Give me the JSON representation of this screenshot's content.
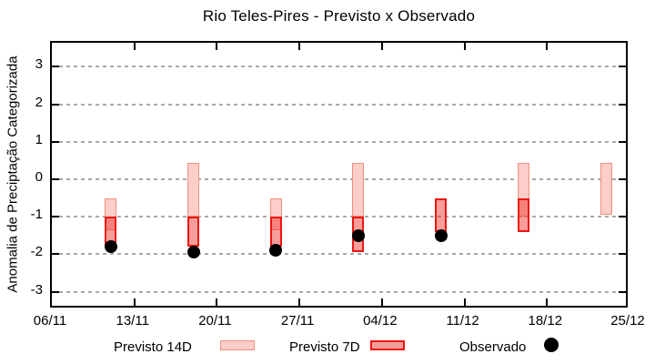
{
  "chart_data": {
    "type": "bar",
    "subtype": "range-bars-with-observed-points",
    "title": "Rio Teles-Pires - Previsto x Observado",
    "ylabel": "Anomalia de Preciptação Categorizada",
    "xlabel": "",
    "ylim": [
      -3.47,
      3.64
    ],
    "yticks": [
      3,
      2,
      1,
      0,
      -1,
      -2,
      -3
    ],
    "grid": "horizontal-dashed",
    "legend_position": "bottom-center",
    "x_axis": {
      "span_days": 49,
      "ticks": [
        {
          "day": 0,
          "label": "06/11"
        },
        {
          "day": 7,
          "label": "13/11"
        },
        {
          "day": 14,
          "label": "20/11"
        },
        {
          "day": 21,
          "label": "27/11"
        },
        {
          "day": 28,
          "label": "04/12"
        },
        {
          "day": 35,
          "label": "11/12"
        },
        {
          "day": 42,
          "label": "18/12"
        },
        {
          "day": 49,
          "label": "25/12"
        }
      ]
    },
    "points": [
      {
        "date": "11/11",
        "day": 5,
        "previsto_14d": [
          -0.5,
          -1.35
        ],
        "previsto_7d": [
          -1.0,
          -1.8
        ],
        "observado": -1.8
      },
      {
        "date": "18/11",
        "day": 12,
        "previsto_14d": [
          0.44,
          -1.0
        ],
        "previsto_7d": [
          -1.0,
          -1.8
        ],
        "observado": -1.95
      },
      {
        "date": "25/11",
        "day": 19,
        "previsto_14d": [
          -0.5,
          -1.35
        ],
        "previsto_7d": [
          -1.0,
          -1.8
        ],
        "observado": -1.9
      },
      {
        "date": "02/12",
        "day": 26,
        "previsto_14d": [
          0.44,
          -1.0
        ],
        "previsto_7d": [
          -1.0,
          -1.95
        ],
        "observado": -1.5
      },
      {
        "date": "09/12",
        "day": 33,
        "previsto_14d": null,
        "previsto_7d": [
          -0.5,
          -1.4
        ],
        "observado": -1.5
      },
      {
        "date": "16/12",
        "day": 40,
        "previsto_14d": [
          0.44,
          -1.0
        ],
        "previsto_7d": [
          -0.5,
          -1.4
        ],
        "observado": null
      },
      {
        "date": "23/12",
        "day": 47,
        "previsto_14d": [
          0.44,
          -0.95
        ],
        "previsto_7d": null,
        "observado": null
      }
    ],
    "legend": [
      {
        "label": "Previsto 14D",
        "type": "box-light"
      },
      {
        "label": "Previsto 7D",
        "type": "box-dark"
      },
      {
        "label": "Observado",
        "type": "dot"
      }
    ],
    "colors": {
      "previsto_14d_fill": "#fccdc9",
      "previsto_14d_border": "#f2907f",
      "previsto_7d_fill": "rgba(240,40,32,0.45)",
      "previsto_7d_border": "#ee1511",
      "observado": "#000000",
      "grid": "#a8a8a8",
      "axis": "#000000"
    }
  }
}
